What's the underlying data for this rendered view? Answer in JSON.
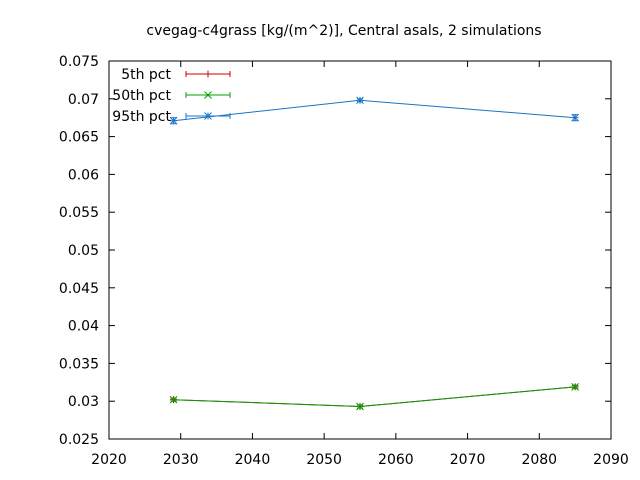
{
  "chart_data": {
    "type": "line",
    "title": "cvegag-c4grass [kg/(m^2)], Central asals, 2 simulations",
    "xlabel": "",
    "ylabel": "",
    "xlim": [
      2020,
      2090
    ],
    "ylim": [
      0.025,
      0.075
    ],
    "xticks": [
      "2020",
      "2030",
      "2040",
      "2050",
      "2060",
      "2070",
      "2080",
      "2090"
    ],
    "yticks": [
      "0.025",
      "0.03",
      "0.035",
      "0.04",
      "0.045",
      "0.05",
      "0.055",
      "0.06",
      "0.065",
      "0.07",
      "0.075"
    ],
    "grid": false,
    "legend_position": "top-left",
    "series": [
      {
        "name": "5th pct",
        "color": "#cc0000",
        "marker": "plus",
        "x": [
          2029,
          2055,
          2085
        ],
        "y": [
          0.0302,
          0.0293,
          0.0319
        ],
        "err": [
          0.0002,
          0.0002,
          0.0002
        ]
      },
      {
        "name": "50th pct",
        "color": "#00a000",
        "marker": "cross",
        "x": [
          2029,
          2055,
          2085
        ],
        "y": [
          0.0302,
          0.0293,
          0.0319
        ],
        "err": [
          0.0002,
          0.0002,
          0.0002
        ]
      },
      {
        "name": "95th pct",
        "color": "#1a74c8",
        "marker": "star",
        "x": [
          2029,
          2055,
          2085
        ],
        "y": [
          0.0671,
          0.0698,
          0.0675
        ],
        "err": [
          0.0004,
          0.0002,
          0.0004
        ]
      }
    ]
  }
}
